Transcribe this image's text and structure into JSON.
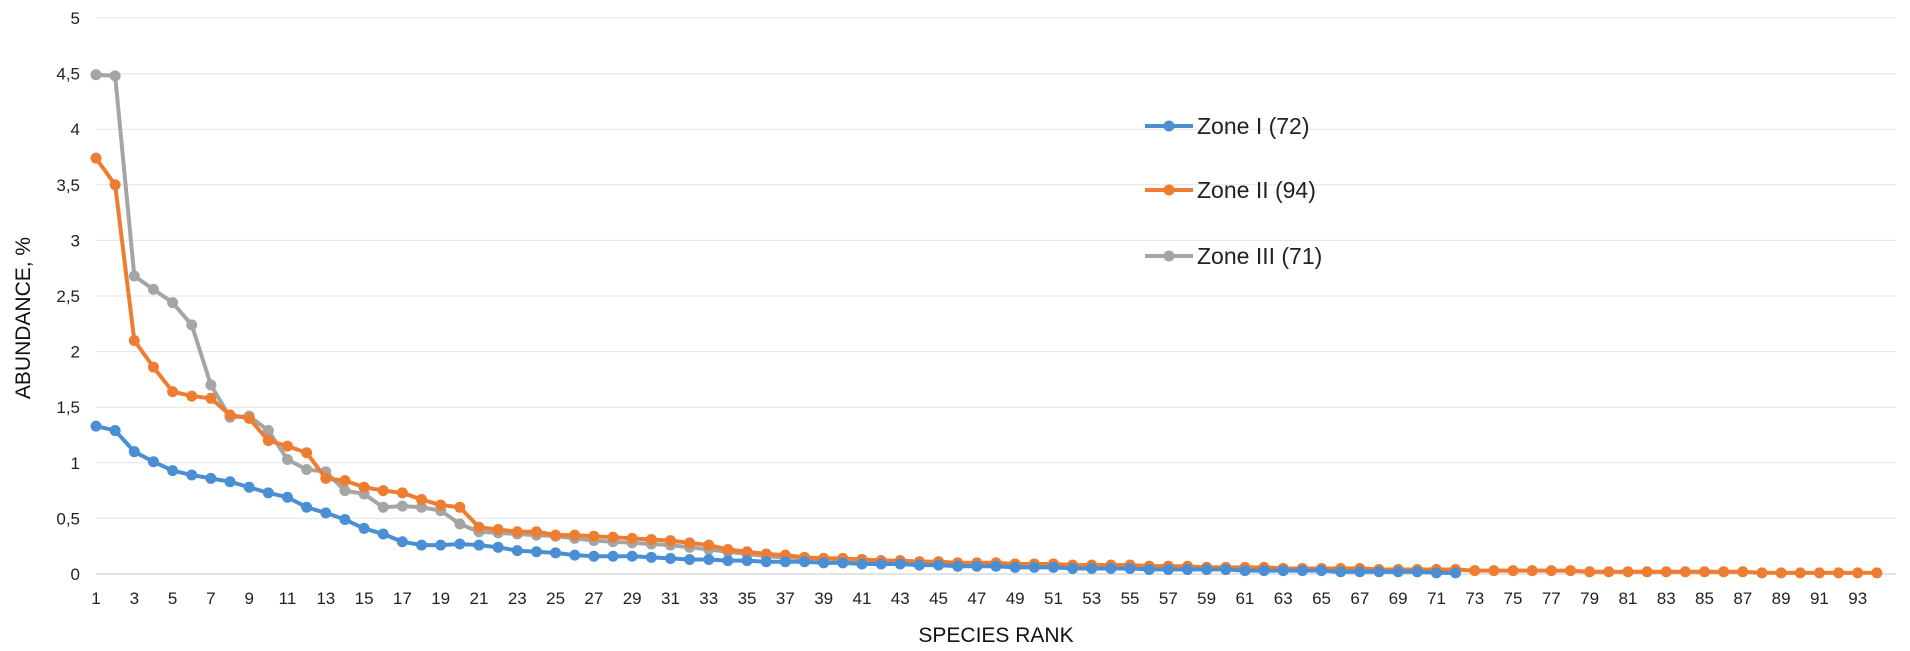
{
  "chart_data": {
    "type": "line",
    "title": "",
    "xlabel": "SPECIES RANK",
    "ylabel": "ABUNDANCE, %",
    "xlim": [
      1,
      95
    ],
    "ylim": [
      0,
      5
    ],
    "grid": true,
    "legend_position": "top-center",
    "y_ticks": [
      "0",
      "0,5",
      "1",
      "1,5",
      "2",
      "2,5",
      "3",
      "3,5",
      "4",
      "4,5",
      "5"
    ],
    "x_ticks": [
      "1",
      "3",
      "5",
      "7",
      "9",
      "11",
      "13",
      "15",
      "17",
      "19",
      "21",
      "23",
      "25",
      "27",
      "29",
      "31",
      "33",
      "35",
      "37",
      "39",
      "41",
      "43",
      "45",
      "47",
      "49",
      "51",
      "53",
      "55",
      "57",
      "59",
      "61",
      "63",
      "65",
      "67",
      "69",
      "71",
      "73",
      "75",
      "77",
      "79",
      "81",
      "83",
      "85",
      "87",
      "89",
      "91",
      "93"
    ],
    "series": [
      {
        "name": "Zone I (72)",
        "color": "#4a8fd4",
        "values": [
          1.33,
          1.29,
          1.1,
          1.01,
          0.93,
          0.89,
          0.86,
          0.83,
          0.78,
          0.73,
          0.69,
          0.6,
          0.55,
          0.49,
          0.41,
          0.36,
          0.29,
          0.26,
          0.26,
          0.27,
          0.26,
          0.24,
          0.21,
          0.2,
          0.19,
          0.17,
          0.16,
          0.16,
          0.16,
          0.15,
          0.14,
          0.13,
          0.13,
          0.12,
          0.12,
          0.11,
          0.11,
          0.11,
          0.1,
          0.1,
          0.09,
          0.09,
          0.09,
          0.08,
          0.08,
          0.07,
          0.07,
          0.07,
          0.06,
          0.06,
          0.06,
          0.05,
          0.05,
          0.05,
          0.05,
          0.04,
          0.04,
          0.04,
          0.04,
          0.04,
          0.03,
          0.03,
          0.03,
          0.03,
          0.03,
          0.02,
          0.02,
          0.02,
          0.02,
          0.02,
          0.01,
          0.01
        ]
      },
      {
        "name": "Zone II (94)",
        "color": "#ed7d31",
        "values": [
          3.74,
          3.5,
          2.1,
          1.86,
          1.64,
          1.6,
          1.58,
          1.43,
          1.4,
          1.2,
          1.15,
          1.09,
          0.86,
          0.84,
          0.78,
          0.75,
          0.73,
          0.67,
          0.62,
          0.6,
          0.42,
          0.4,
          0.38,
          0.38,
          0.35,
          0.35,
          0.34,
          0.33,
          0.32,
          0.31,
          0.3,
          0.28,
          0.26,
          0.22,
          0.2,
          0.18,
          0.17,
          0.15,
          0.14,
          0.14,
          0.13,
          0.12,
          0.12,
          0.11,
          0.11,
          0.1,
          0.1,
          0.1,
          0.09,
          0.09,
          0.09,
          0.08,
          0.08,
          0.08,
          0.08,
          0.07,
          0.07,
          0.07,
          0.06,
          0.06,
          0.06,
          0.06,
          0.05,
          0.05,
          0.05,
          0.05,
          0.05,
          0.04,
          0.04,
          0.04,
          0.04,
          0.04,
          0.03,
          0.03,
          0.03,
          0.03,
          0.03,
          0.03,
          0.02,
          0.02,
          0.02,
          0.02,
          0.02,
          0.02,
          0.02,
          0.02,
          0.02,
          0.01,
          0.01,
          0.01,
          0.01,
          0.01,
          0.01,
          0.01
        ]
      },
      {
        "name": "Zone III (71)",
        "color": "#a5a5a5",
        "values": [
          4.49,
          4.48,
          2.68,
          2.56,
          2.44,
          2.24,
          1.7,
          1.41,
          1.42,
          1.29,
          1.03,
          0.94,
          0.92,
          0.75,
          0.72,
          0.6,
          0.61,
          0.6,
          0.57,
          0.45,
          0.38,
          0.37,
          0.36,
          0.35,
          0.34,
          0.32,
          0.3,
          0.29,
          0.28,
          0.27,
          0.26,
          0.24,
          0.22,
          0.2,
          0.18,
          0.16,
          0.15,
          0.14,
          0.14,
          0.13,
          0.13,
          0.12,
          0.12,
          0.11,
          0.11,
          0.1,
          0.1,
          0.1,
          0.09,
          0.09,
          0.09,
          0.08,
          0.08,
          0.08,
          0.08,
          0.07,
          0.07,
          0.06,
          0.06,
          0.06,
          0.05,
          0.05,
          0.05,
          0.05,
          0.04,
          0.04,
          0.04,
          0.03,
          0.03,
          0.02,
          0.02
        ]
      }
    ]
  }
}
